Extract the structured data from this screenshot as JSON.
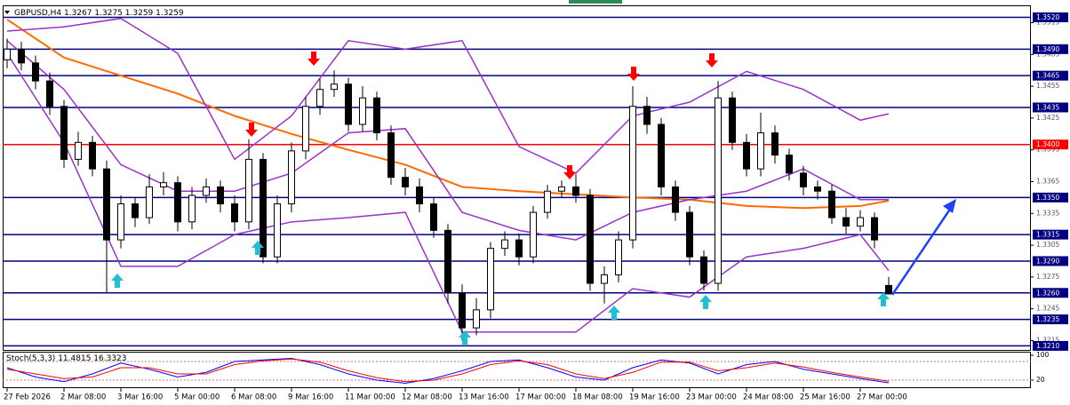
{
  "chart_data": [
    {
      "type": "candlestick",
      "title": "GBPUSD,H4",
      "categories": [
        "27 Feb 2026",
        null,
        null,
        null,
        "2 Mar 08:00",
        null,
        null,
        null,
        "3 Mar 16:00",
        null,
        null,
        null,
        "5 Mar 00:00",
        null,
        null,
        null,
        "6 Mar 08:00",
        null,
        null,
        null,
        "9 Mar 16:00",
        null,
        null,
        null,
        "11 Mar 00:00",
        null,
        null,
        null,
        "12 Mar 08:00",
        null,
        null,
        null,
        "13 Mar 16:00",
        null,
        null,
        null,
        "17 Mar 00:00",
        null,
        null,
        null,
        "18 Mar 08:00",
        null,
        null,
        null,
        "19 Mar 16:00",
        null,
        null,
        null,
        "23 Mar 00:00",
        null,
        null,
        null,
        "24 Mar 08:00",
        null,
        null,
        null,
        "25 Mar 16:00",
        null,
        null,
        null,
        "27 Mar 00:00",
        null,
        null
      ],
      "open": [
        1.348,
        1.349,
        1.3477,
        1.346,
        1.3436,
        1.3386,
        1.3402,
        1.3377,
        1.331,
        1.3344,
        1.3331,
        1.336,
        1.3364,
        1.3327,
        1.3352,
        1.336,
        1.3344,
        1.3327,
        1.3386,
        1.3294,
        1.3344,
        1.3394,
        1.3436,
        1.3452,
        1.3457,
        1.3419,
        1.3444,
        1.3411,
        1.3369,
        1.336,
        1.3344,
        1.3319,
        1.326,
        1.3227,
        1.3244,
        1.3302,
        1.331,
        1.3294,
        1.3336,
        1.3356,
        1.336,
        1.3352,
        1.3269,
        1.3277,
        1.331,
        1.3436,
        1.3419,
        1.336,
        1.3336,
        1.3294,
        1.3269,
        1.3444,
        1.3402,
        1.3377,
        1.3411,
        1.339,
        1.3373,
        1.336,
        1.3356,
        1.3331,
        1.3323,
        1.3331,
        1.3267
      ],
      "high": [
        1.35,
        1.3497,
        1.3484,
        1.3468,
        1.3442,
        1.3412,
        1.3408,
        1.3385,
        1.3352,
        1.335,
        1.3372,
        1.3374,
        1.337,
        1.336,
        1.3368,
        1.3366,
        1.3352,
        1.3405,
        1.3392,
        1.3352,
        1.3402,
        1.3445,
        1.3462,
        1.347,
        1.3463,
        1.3455,
        1.345,
        1.3418,
        1.3378,
        1.3368,
        1.335,
        1.3325,
        1.3268,
        1.3255,
        1.3308,
        1.3318,
        1.3316,
        1.3342,
        1.3362,
        1.3366,
        1.3372,
        1.3358,
        1.3285,
        1.3318,
        1.3455,
        1.3445,
        1.3425,
        1.3366,
        1.3342,
        1.33,
        1.346,
        1.345,
        1.341,
        1.343,
        1.3418,
        1.3396,
        1.338,
        1.3366,
        1.3362,
        1.334,
        1.3338,
        1.3336,
        1.3275
      ],
      "low": [
        1.3472,
        1.347,
        1.3452,
        1.3428,
        1.3378,
        1.338,
        1.337,
        1.326,
        1.3302,
        1.3322,
        1.3325,
        1.3352,
        1.3318,
        1.332,
        1.3345,
        1.3336,
        1.3318,
        1.332,
        1.3288,
        1.3288,
        1.3336,
        1.3386,
        1.3428,
        1.3445,
        1.3412,
        1.3412,
        1.3404,
        1.3362,
        1.3352,
        1.3336,
        1.3312,
        1.325,
        1.3215,
        1.322,
        1.3236,
        1.3295,
        1.3286,
        1.3288,
        1.333,
        1.335,
        1.3345,
        1.3262,
        1.325,
        1.327,
        1.3302,
        1.341,
        1.3352,
        1.3328,
        1.3286,
        1.3262,
        1.3262,
        1.3395,
        1.337,
        1.337,
        1.3382,
        1.3366,
        1.3352,
        1.3348,
        1.3325,
        1.3316,
        1.3318,
        1.3302,
        1.3259
      ],
      "close": [
        1.349,
        1.3477,
        1.346,
        1.3436,
        1.3386,
        1.3402,
        1.3377,
        1.331,
        1.3344,
        1.3331,
        1.336,
        1.3364,
        1.3327,
        1.3352,
        1.336,
        1.3344,
        1.3327,
        1.3386,
        1.3294,
        1.3344,
        1.3394,
        1.3436,
        1.3452,
        1.3457,
        1.3419,
        1.3444,
        1.3411,
        1.3369,
        1.336,
        1.3344,
        1.3319,
        1.326,
        1.3227,
        1.3244,
        1.3302,
        1.331,
        1.3294,
        1.3336,
        1.3356,
        1.336,
        1.3352,
        1.3269,
        1.3277,
        1.331,
        1.3436,
        1.3419,
        1.336,
        1.3336,
        1.3294,
        1.3269,
        1.3444,
        1.3402,
        1.3377,
        1.3411,
        1.339,
        1.3373,
        1.336,
        1.3356,
        1.3331,
        1.3323,
        1.3331,
        1.331,
        1.3259
      ],
      "overlays": [
        {
          "color": "#ff6a00",
          "x": [
            0,
            4,
            8,
            12,
            16,
            20,
            24,
            28,
            32,
            36,
            40,
            44,
            48,
            52,
            56,
            60,
            62
          ],
          "values": [
            1.3518,
            1.3482,
            1.3465,
            1.3448,
            1.3427,
            1.341,
            1.3395,
            1.3381,
            1.336,
            1.3356,
            1.3353,
            1.335,
            1.3348,
            1.3342,
            1.334,
            1.3342,
            1.3347
          ]
        },
        {
          "color": "#9932cc",
          "x": [
            0,
            4,
            8,
            12,
            16,
            20,
            24,
            28,
            32,
            36,
            40,
            44,
            48,
            52,
            56,
            60,
            62
          ],
          "values": [
            1.3507,
            1.3511,
            1.3519,
            1.3486,
            1.3386,
            1.3427,
            1.3498,
            1.349,
            1.3498,
            1.3398,
            1.3373,
            1.3427,
            1.344,
            1.3469,
            1.3452,
            1.3423,
            1.3429
          ]
        },
        {
          "color": "#9932cc",
          "x": [
            0,
            4,
            8,
            12,
            16,
            20,
            24,
            28,
            32,
            36,
            40,
            44,
            48,
            52,
            56,
            60,
            62
          ],
          "values": [
            1.3498,
            1.3452,
            1.3381,
            1.3356,
            1.3356,
            1.3373,
            1.3411,
            1.3415,
            1.3336,
            1.3319,
            1.331,
            1.3336,
            1.3348,
            1.3356,
            1.3377,
            1.3348,
            1.3348
          ]
        },
        {
          "color": "#9932cc",
          "x": [
            0,
            4,
            8,
            12,
            16,
            20,
            24,
            28,
            32,
            36,
            40,
            44,
            48,
            52,
            56,
            60,
            62
          ],
          "values": [
            1.3486,
            1.3402,
            1.3285,
            1.3285,
            1.3315,
            1.3327,
            1.3331,
            1.3336,
            1.3223,
            1.3223,
            1.3223,
            1.3264,
            1.3256,
            1.3294,
            1.3302,
            1.3315,
            1.3281
          ]
        }
      ],
      "levels": [
        {
          "value": 1.352,
          "label": "1.3520"
        },
        {
          "value": 1.349,
          "label": "1.3490"
        },
        1.3465,
        1.3435,
        {
          "value": 1.34,
          "label": "1.3400"
        },
        {
          "value": 1.335,
          "label": "1.3350"
        },
        1.3315,
        {
          "value": 1.329,
          "label": "1.3290"
        },
        {
          "value": 1.326,
          "label": "1.3260"
        },
        1.3235,
        {
          "value": 1.321,
          "label": "1.3210"
        }
      ],
      "level_colors": [
        "#000080",
        "#000080",
        "#000080",
        "#000080",
        "#ff0000",
        "#000080",
        "#000080",
        "#000080",
        "#000080",
        "#000080",
        "#000080"
      ],
      "ylim": [
        1.3207,
        1.3528
      ],
      "yticks": [
        1.3515,
        1.3485,
        1.3455,
        1.3425,
        1.3395,
        1.3365,
        1.3335,
        1.3305,
        1.3275,
        1.3245,
        1.3215
      ]
    },
    {
      "type": "line",
      "title": "Stoch(5,3,3)",
      "series": [
        {
          "color": "#0000ff",
          "x": [
            0,
            2,
            4,
            6,
            8,
            10,
            12,
            14,
            16,
            18,
            20,
            22,
            24,
            26,
            28,
            30,
            32,
            34,
            36,
            38,
            40,
            42,
            44,
            46,
            48,
            50,
            52,
            54,
            56,
            58,
            60,
            62
          ],
          "values": [
            60,
            30,
            15,
            40,
            75,
            55,
            30,
            45,
            80,
            85,
            90,
            70,
            40,
            20,
            10,
            25,
            50,
            80,
            85,
            60,
            30,
            20,
            60,
            85,
            75,
            40,
            70,
            80,
            55,
            40,
            25,
            11.4815
          ]
        },
        {
          "color": "#ff0000",
          "x": [
            0,
            2,
            4,
            6,
            8,
            10,
            12,
            14,
            16,
            18,
            20,
            22,
            24,
            26,
            28,
            30,
            32,
            34,
            36,
            38,
            40,
            42,
            44,
            46,
            48,
            50,
            52,
            54,
            56,
            58,
            60,
            62
          ],
          "values": [
            55,
            40,
            25,
            30,
            60,
            60,
            40,
            40,
            70,
            82,
            88,
            78,
            50,
            28,
            15,
            20,
            40,
            70,
            82,
            70,
            40,
            25,
            45,
            78,
            78,
            50,
            60,
            75,
            62,
            45,
            30,
            16.3323
          ]
        }
      ],
      "levels": [
        20,
        80
      ],
      "ylim": [
        0,
        100
      ],
      "yticks": [
        20,
        100
      ]
    }
  ]
}
